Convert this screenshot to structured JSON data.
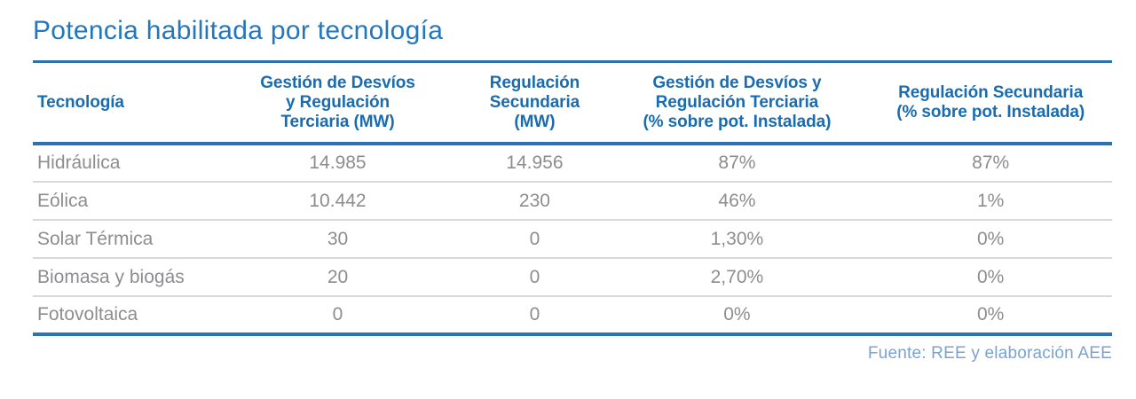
{
  "title": "Potencia habilitada por tecnología",
  "source": "Fuente: REE y elaboración AEE",
  "colors": {
    "title_text": "#2277bd",
    "header_text": "#1a6cb0",
    "accent_rule_blue": "#2d72ae",
    "body_text": "#8d8d90",
    "row_separator": "#d9d9d9",
    "source_text": "#7aa2d2",
    "background": "#ffffff"
  },
  "chart_data": {
    "type": "table",
    "title": "Potencia habilitada por tecnología",
    "columns": [
      "Tecnología",
      "Gestión de Desvíos\ny Regulación\nTerciaria (MW)",
      "Regulación\nSecundaria\n(MW)",
      "Gestión de Desvíos y\nRegulación Terciaria\n(% sobre pot. Instalada)",
      "Regulación Secundaria\n(% sobre pot. Instalada)"
    ],
    "rows": [
      [
        "Hidráulica",
        "14.985",
        "14.956",
        "87%",
        "87%"
      ],
      [
        "Eólica",
        "10.442",
        "230",
        "46%",
        "1%"
      ],
      [
        "Solar Térmica",
        "30",
        "0",
        "1,30%",
        "0%"
      ],
      [
        "Biomasa y biogás",
        "20",
        "0",
        "2,70%",
        "0%"
      ],
      [
        "Fotovoltaica",
        "0",
        "0",
        "0%",
        "0%"
      ]
    ],
    "source": "Fuente: REE y elaboración AEE",
    "layout": {
      "grid": "horizontal-rules-only",
      "header_align": "center",
      "first_column_align": "left",
      "value_align": "center"
    }
  }
}
